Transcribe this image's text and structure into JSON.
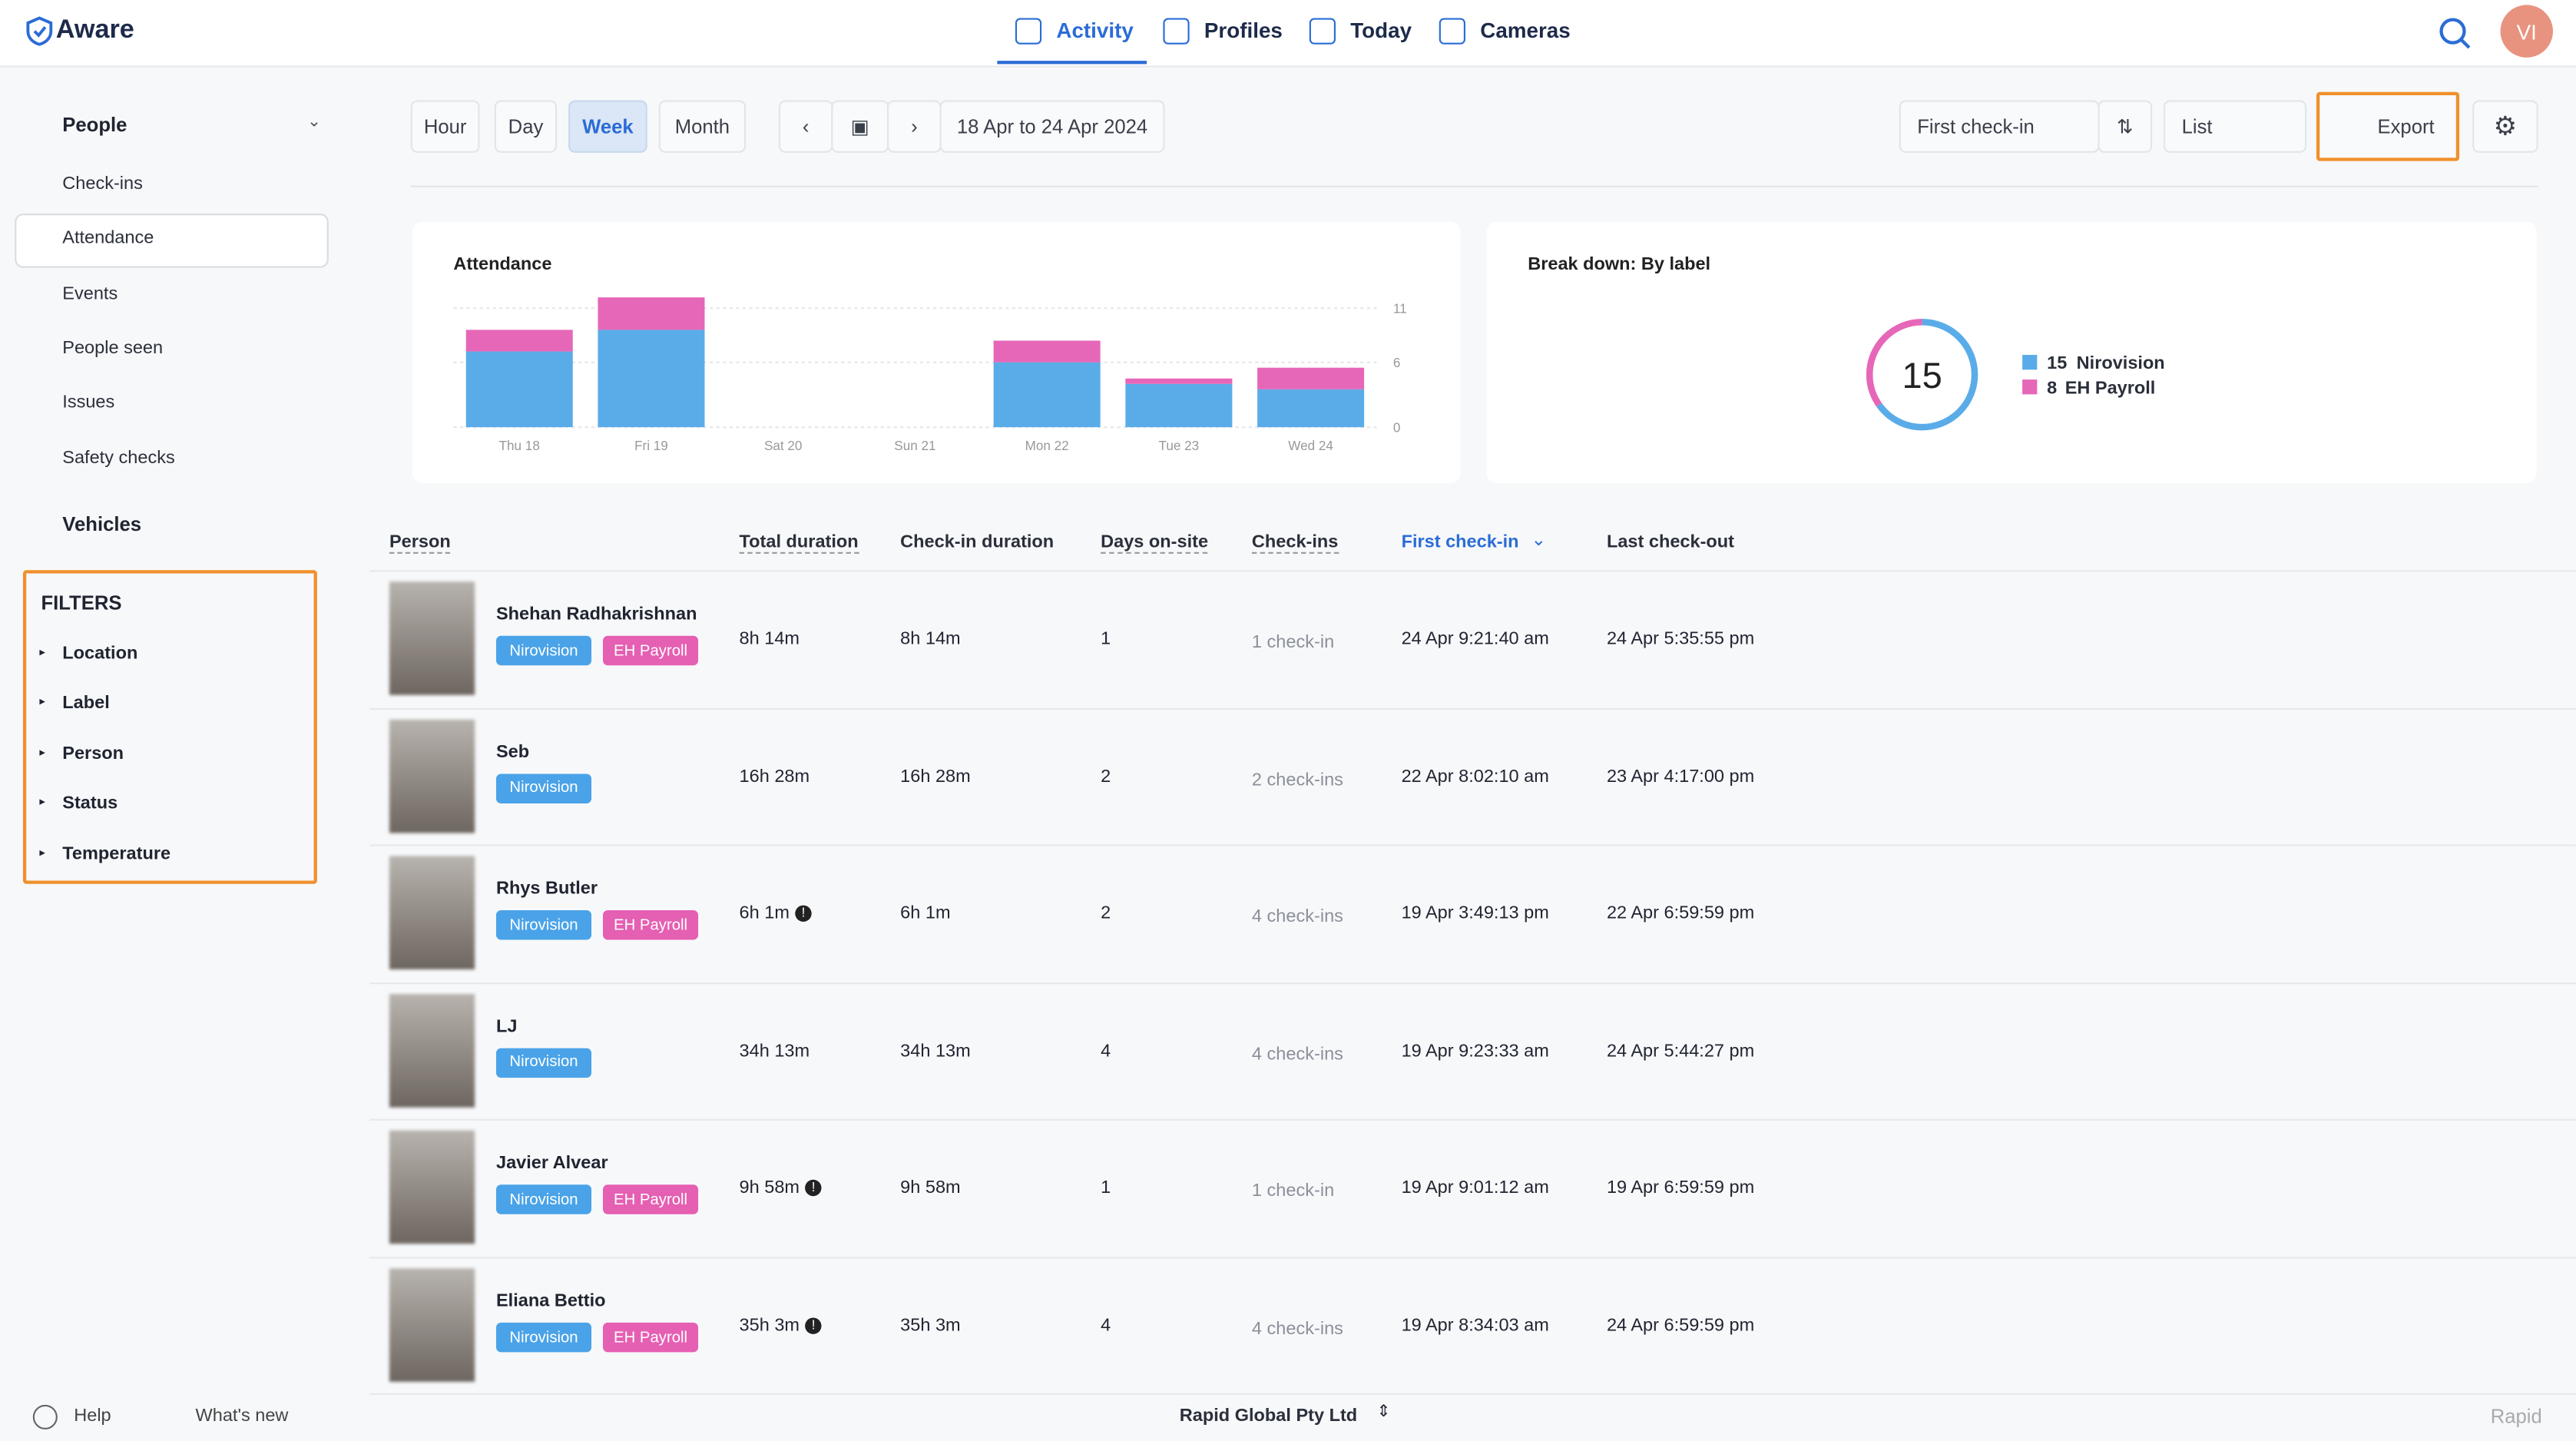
{
  "header": {
    "logo": "Aware",
    "tabs": [
      "Activity",
      "Profiles",
      "Today",
      "Cameras"
    ],
    "avatar": "VI"
  },
  "sidebar": {
    "people": "People",
    "items": [
      "Check-ins",
      "Attendance",
      "Events",
      "People seen",
      "Issues",
      "Safety checks"
    ],
    "vehicles": "Vehicles",
    "filters_title": "FILTERS",
    "filters": [
      "Location",
      "Label",
      "Person",
      "Status",
      "Temperature"
    ],
    "help": "Help",
    "whats_new": "What's new"
  },
  "toolbar": {
    "ranges": [
      "Hour",
      "Day",
      "Week",
      "Month"
    ],
    "date_range": "18 Apr to 24 Apr 2024",
    "sort": "First check-in",
    "view": "List",
    "export": "Export"
  },
  "chart_data": [
    {
      "type": "bar",
      "title": "Attendance",
      "categories": [
        "Thu 18",
        "Fri 19",
        "Sat 20",
        "Sun 21",
        "Mon 22",
        "Tue 23",
        "Wed 24"
      ],
      "series": [
        {
          "color": "#5aace8",
          "values": [
            7,
            9,
            0,
            0,
            6,
            4,
            3.5
          ]
        },
        {
          "color": "#e667b8",
          "values": [
            2,
            3,
            0,
            0,
            2,
            0.5,
            2
          ]
        }
      ],
      "ylim": [
        0,
        12
      ],
      "yticks": [
        0,
        6,
        11
      ],
      "grid": true
    },
    {
      "type": "donut",
      "title": "Break down: By label",
      "total": 15,
      "series": [
        {
          "name": "Nirovision",
          "color": "#5aace8",
          "value": 15
        },
        {
          "name": "EH Payroll",
          "color": "#e667b8",
          "value": 8
        }
      ]
    }
  ],
  "table": {
    "columns": [
      "Person",
      "Total duration",
      "Check-in duration",
      "Days on-site",
      "Check-ins",
      "First check-in",
      "Last check-out"
    ],
    "rows": [
      {
        "name": "Shehan Radhakrishnan",
        "labels": [
          "Nirovision",
          "EH Payroll"
        ],
        "total": "8h 14m",
        "warning": false,
        "checkin_duration": "8h 14m",
        "days": "1",
        "checkins": "1 check-in",
        "first": "24 Apr 9:21:40 am",
        "last": "24 Apr 5:35:55 pm"
      },
      {
        "name": "Seb",
        "labels": [
          "Nirovision"
        ],
        "total": "16h 28m",
        "warning": false,
        "checkin_duration": "16h 28m",
        "days": "2",
        "checkins": "2 check-ins",
        "first": "22 Apr 8:02:10 am",
        "last": "23 Apr 4:17:00 pm"
      },
      {
        "name": "Rhys Butler",
        "labels": [
          "Nirovision",
          "EH Payroll"
        ],
        "total": "6h 1m",
        "warning": true,
        "checkin_duration": "6h 1m",
        "days": "2",
        "checkins": "4 check-ins",
        "first": "19 Apr 3:49:13 pm",
        "last": "22 Apr 6:59:59 pm"
      },
      {
        "name": "LJ",
        "labels": [
          "Nirovision"
        ],
        "total": "34h 13m",
        "warning": false,
        "checkin_duration": "34h 13m",
        "days": "4",
        "checkins": "4 check-ins",
        "first": "19 Apr 9:23:33 am",
        "last": "24 Apr 5:44:27 pm"
      },
      {
        "name": "Javier Alvear",
        "labels": [
          "Nirovision",
          "EH Payroll"
        ],
        "total": "9h 58m",
        "warning": true,
        "checkin_duration": "9h 58m",
        "days": "1",
        "checkins": "1 check-in",
        "first": "19 Apr 9:01:12 am",
        "last": "19 Apr 6:59:59 pm"
      },
      {
        "name": "Eliana Bettio",
        "labels": [
          "Nirovision",
          "EH Payroll"
        ],
        "total": "35h 3m",
        "warning": true,
        "checkin_duration": "35h 3m",
        "days": "4",
        "checkins": "4 check-ins",
        "first": "19 Apr 8:34:03 am",
        "last": "24 Apr 6:59:59 pm"
      }
    ]
  },
  "footer": {
    "company": "Rapid Global Pty Ltd",
    "brand": "Rapid"
  }
}
